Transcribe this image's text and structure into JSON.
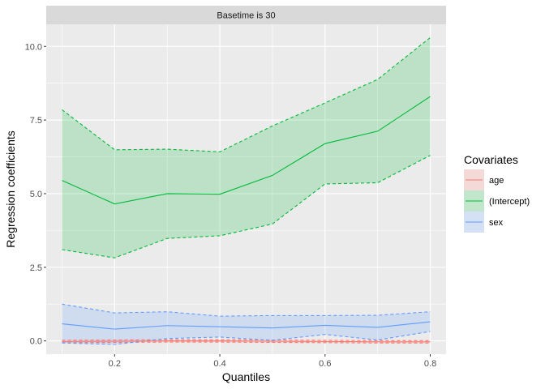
{
  "chart_data": {
    "type": "line",
    "facet_label": "Basetime is 30",
    "xlabel": "Quantiles",
    "ylabel": "Regression coefficients",
    "xlim": [
      0.07,
      0.83
    ],
    "ylim": [
      -0.45,
      10.75
    ],
    "x_ticks": [
      0.2,
      0.4,
      0.6,
      0.8
    ],
    "x_tick_labels": [
      "0.2",
      "0.4",
      "0.6",
      "0.8"
    ],
    "y_ticks": [
      0,
      2.5,
      5,
      7.5,
      10
    ],
    "y_tick_labels": [
      "0.0",
      "2.5",
      "5.0",
      "7.5",
      "10.0"
    ],
    "grid": true,
    "legend": {
      "title": "Covariates",
      "position": "right"
    },
    "x": [
      0.1,
      0.2,
      0.3,
      0.4,
      0.5,
      0.6,
      0.7,
      0.8
    ],
    "series": [
      {
        "name": "age",
        "color": "#F8766D",
        "fill": "#F8766D",
        "values": [
          -0.02,
          -0.01,
          0.0,
          0.0,
          -0.01,
          -0.02,
          -0.03,
          -0.03
        ],
        "lower": [
          -0.06,
          -0.05,
          -0.04,
          -0.04,
          -0.05,
          -0.06,
          -0.07,
          -0.07
        ],
        "upper": [
          0.02,
          0.03,
          0.04,
          0.04,
          0.03,
          0.02,
          0.01,
          0.01
        ]
      },
      {
        "name": "(Intercept)",
        "color": "#00BA38",
        "fill": "#00BA38",
        "values": [
          5.45,
          4.65,
          5.0,
          4.98,
          5.62,
          6.7,
          7.12,
          8.3
        ],
        "lower": [
          3.1,
          2.82,
          3.48,
          3.57,
          3.97,
          5.33,
          5.37,
          6.3
        ],
        "upper": [
          7.85,
          6.49,
          6.51,
          6.42,
          7.3,
          8.08,
          8.88,
          10.3
        ]
      },
      {
        "name": "sex",
        "color": "#619CFF",
        "fill": "#619CFF",
        "values": [
          0.58,
          0.4,
          0.52,
          0.48,
          0.44,
          0.53,
          0.46,
          0.65
        ],
        "lower": [
          -0.07,
          -0.12,
          0.08,
          0.13,
          0.02,
          0.22,
          0.03,
          0.32
        ],
        "upper": [
          1.25,
          0.95,
          0.99,
          0.84,
          0.86,
          0.86,
          0.87,
          0.99
        ]
      }
    ]
  }
}
